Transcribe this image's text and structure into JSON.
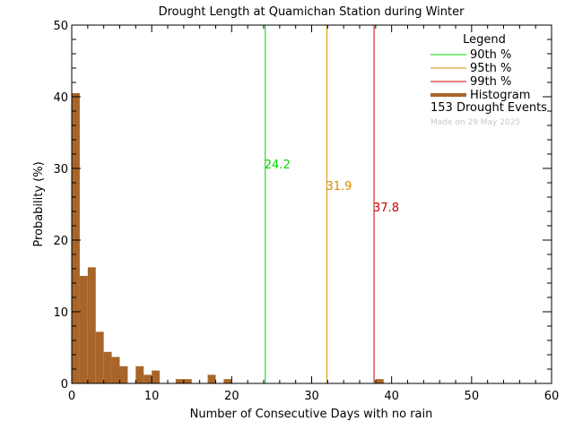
{
  "chart_data": {
    "type": "bar",
    "title": "Drought Length at Quamichan Station during Winter",
    "xlabel": "Number of Consecutive Days with no rain",
    "ylabel": "Probability (%)",
    "xlim": [
      0,
      60
    ],
    "ylim": [
      0,
      50
    ],
    "x_ticks": [
      0,
      10,
      20,
      30,
      40,
      50,
      60
    ],
    "y_ticks": [
      0,
      10,
      20,
      30,
      40,
      50
    ],
    "bin_width": 1,
    "bins": [
      {
        "x": 0,
        "value": 40.5
      },
      {
        "x": 1,
        "value": 15.0
      },
      {
        "x": 2,
        "value": 16.2
      },
      {
        "x": 3,
        "value": 7.2
      },
      {
        "x": 4,
        "value": 4.4
      },
      {
        "x": 5,
        "value": 3.7
      },
      {
        "x": 6,
        "value": 2.4
      },
      {
        "x": 8,
        "value": 2.4
      },
      {
        "x": 9,
        "value": 1.2
      },
      {
        "x": 10,
        "value": 1.8
      },
      {
        "x": 13,
        "value": 0.6
      },
      {
        "x": 14,
        "value": 0.6
      },
      {
        "x": 17,
        "value": 1.2
      },
      {
        "x": 19,
        "value": 0.6
      },
      {
        "x": 38,
        "value": 0.6
      }
    ],
    "percentiles": [
      {
        "name": "90th %",
        "value": 24.2,
        "label": "24.2",
        "color": "#00d400",
        "label_y": 30.6
      },
      {
        "name": "95th %",
        "value": 31.9,
        "label": "31.9",
        "color": "#d98c00",
        "label_y": 27.6
      },
      {
        "name": "99th %",
        "value": 37.8,
        "label": "37.8",
        "color": "#cc0000",
        "label_y": 24.6
      }
    ],
    "histogram_color": "#a8652a",
    "legend": {
      "title": "Legend",
      "placement": "top-right",
      "entries": [
        "90th %",
        "95th %",
        "99th %",
        "Histogram"
      ],
      "events_text": "153 Drought Events",
      "made_on": "Made on 29 May 2025"
    }
  }
}
